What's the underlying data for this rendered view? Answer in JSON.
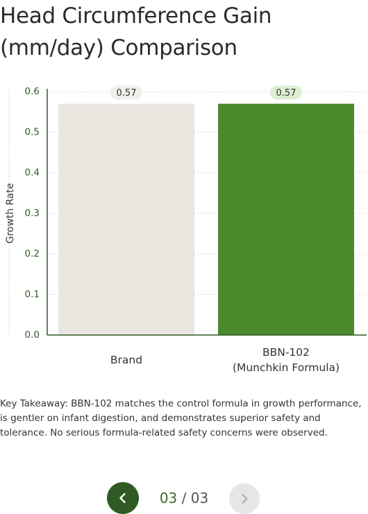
{
  "title_lines": [
    "Head Circumference Gain",
    "(mm/day) Comparison"
  ],
  "chart_data": {
    "type": "bar",
    "categories": [
      "Brand",
      "BBN-102 (Munchkin Formula)"
    ],
    "category_lines": [
      [
        "Brand"
      ],
      [
        "BBN-102",
        "(Munchkin Formula)"
      ]
    ],
    "values": [
      0.57,
      0.57
    ],
    "data_labels": [
      "0.57",
      "0.57"
    ],
    "title": "Head Circumference Gain (mm/day) Comparison",
    "xlabel": "",
    "ylabel": "Growth Rate",
    "ylim": [
      0,
      0.6
    ],
    "yticks": [
      "0.0",
      "0.1",
      "0.2",
      "0.3",
      "0.4",
      "0.5",
      "0.6"
    ],
    "grid": true,
    "bar_colors": [
      "#e9e6e0",
      "#4b8a2c"
    ],
    "label_pill_colors": [
      "#f0efec",
      "#dcefd0"
    ],
    "axis_color": "#2f5a24"
  },
  "caption": "Key Takeaway: BBN-102 matches the control formula in growth performance, is gentler on infant digestion, and demonstrates superior safety and tolerance. No serious formula-related safety concerns were observed.",
  "pager": {
    "current": "03",
    "separator": " / ",
    "total": "03",
    "prev_icon": "chevron-left-icon",
    "next_icon": "chevron-right-icon"
  }
}
